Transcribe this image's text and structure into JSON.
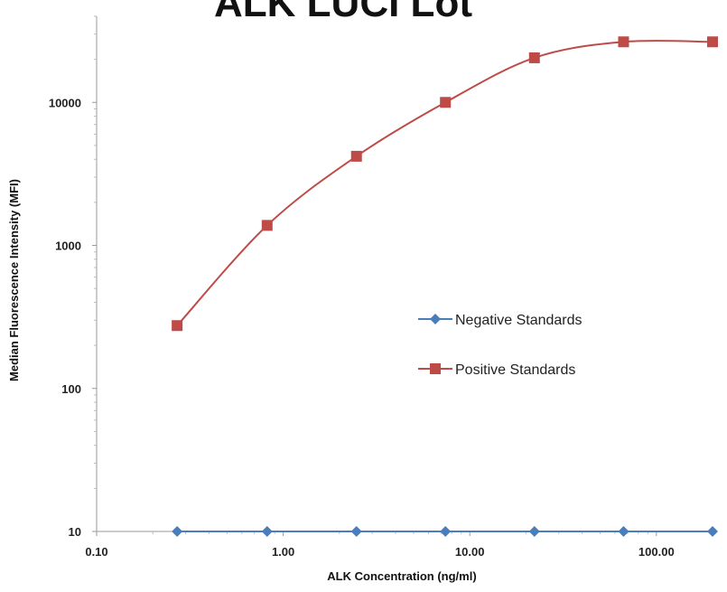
{
  "chart_data": {
    "type": "line",
    "title": "ALK LUCI Lot",
    "xlabel": "ALK Concentration (ng/ml)",
    "ylabel": "Median Fluorescence Intensity (MFI)",
    "x_scale": "log",
    "y_scale": "log",
    "xlim": [
      0.1,
      200
    ],
    "ylim": [
      10,
      40000
    ],
    "x_ticks": [
      0.1,
      1,
      10,
      100
    ],
    "x_tick_labels": [
      "0.10",
      "1.00",
      "10.00",
      "100.00"
    ],
    "y_ticks": [
      10,
      100,
      1000,
      10000
    ],
    "y_tick_labels": [
      "10",
      "100",
      "1000",
      "10000"
    ],
    "grid": false,
    "legend_position": "center-right",
    "series": [
      {
        "name": "Negative Standards",
        "color": "#4a7ebb",
        "marker": "diamond",
        "x": [
          0.27,
          0.82,
          2.47,
          7.4,
          22.2,
          66.7,
          200
        ],
        "y": [
          10,
          10,
          10,
          10,
          10,
          10,
          10
        ]
      },
      {
        "name": "Positive Standards",
        "color": "#be4b48",
        "marker": "square",
        "x": [
          0.27,
          0.82,
          2.47,
          7.4,
          22.2,
          66.7,
          200
        ],
        "y": [
          275,
          1380,
          4200,
          10000,
          20500,
          26500,
          26500
        ]
      }
    ]
  }
}
